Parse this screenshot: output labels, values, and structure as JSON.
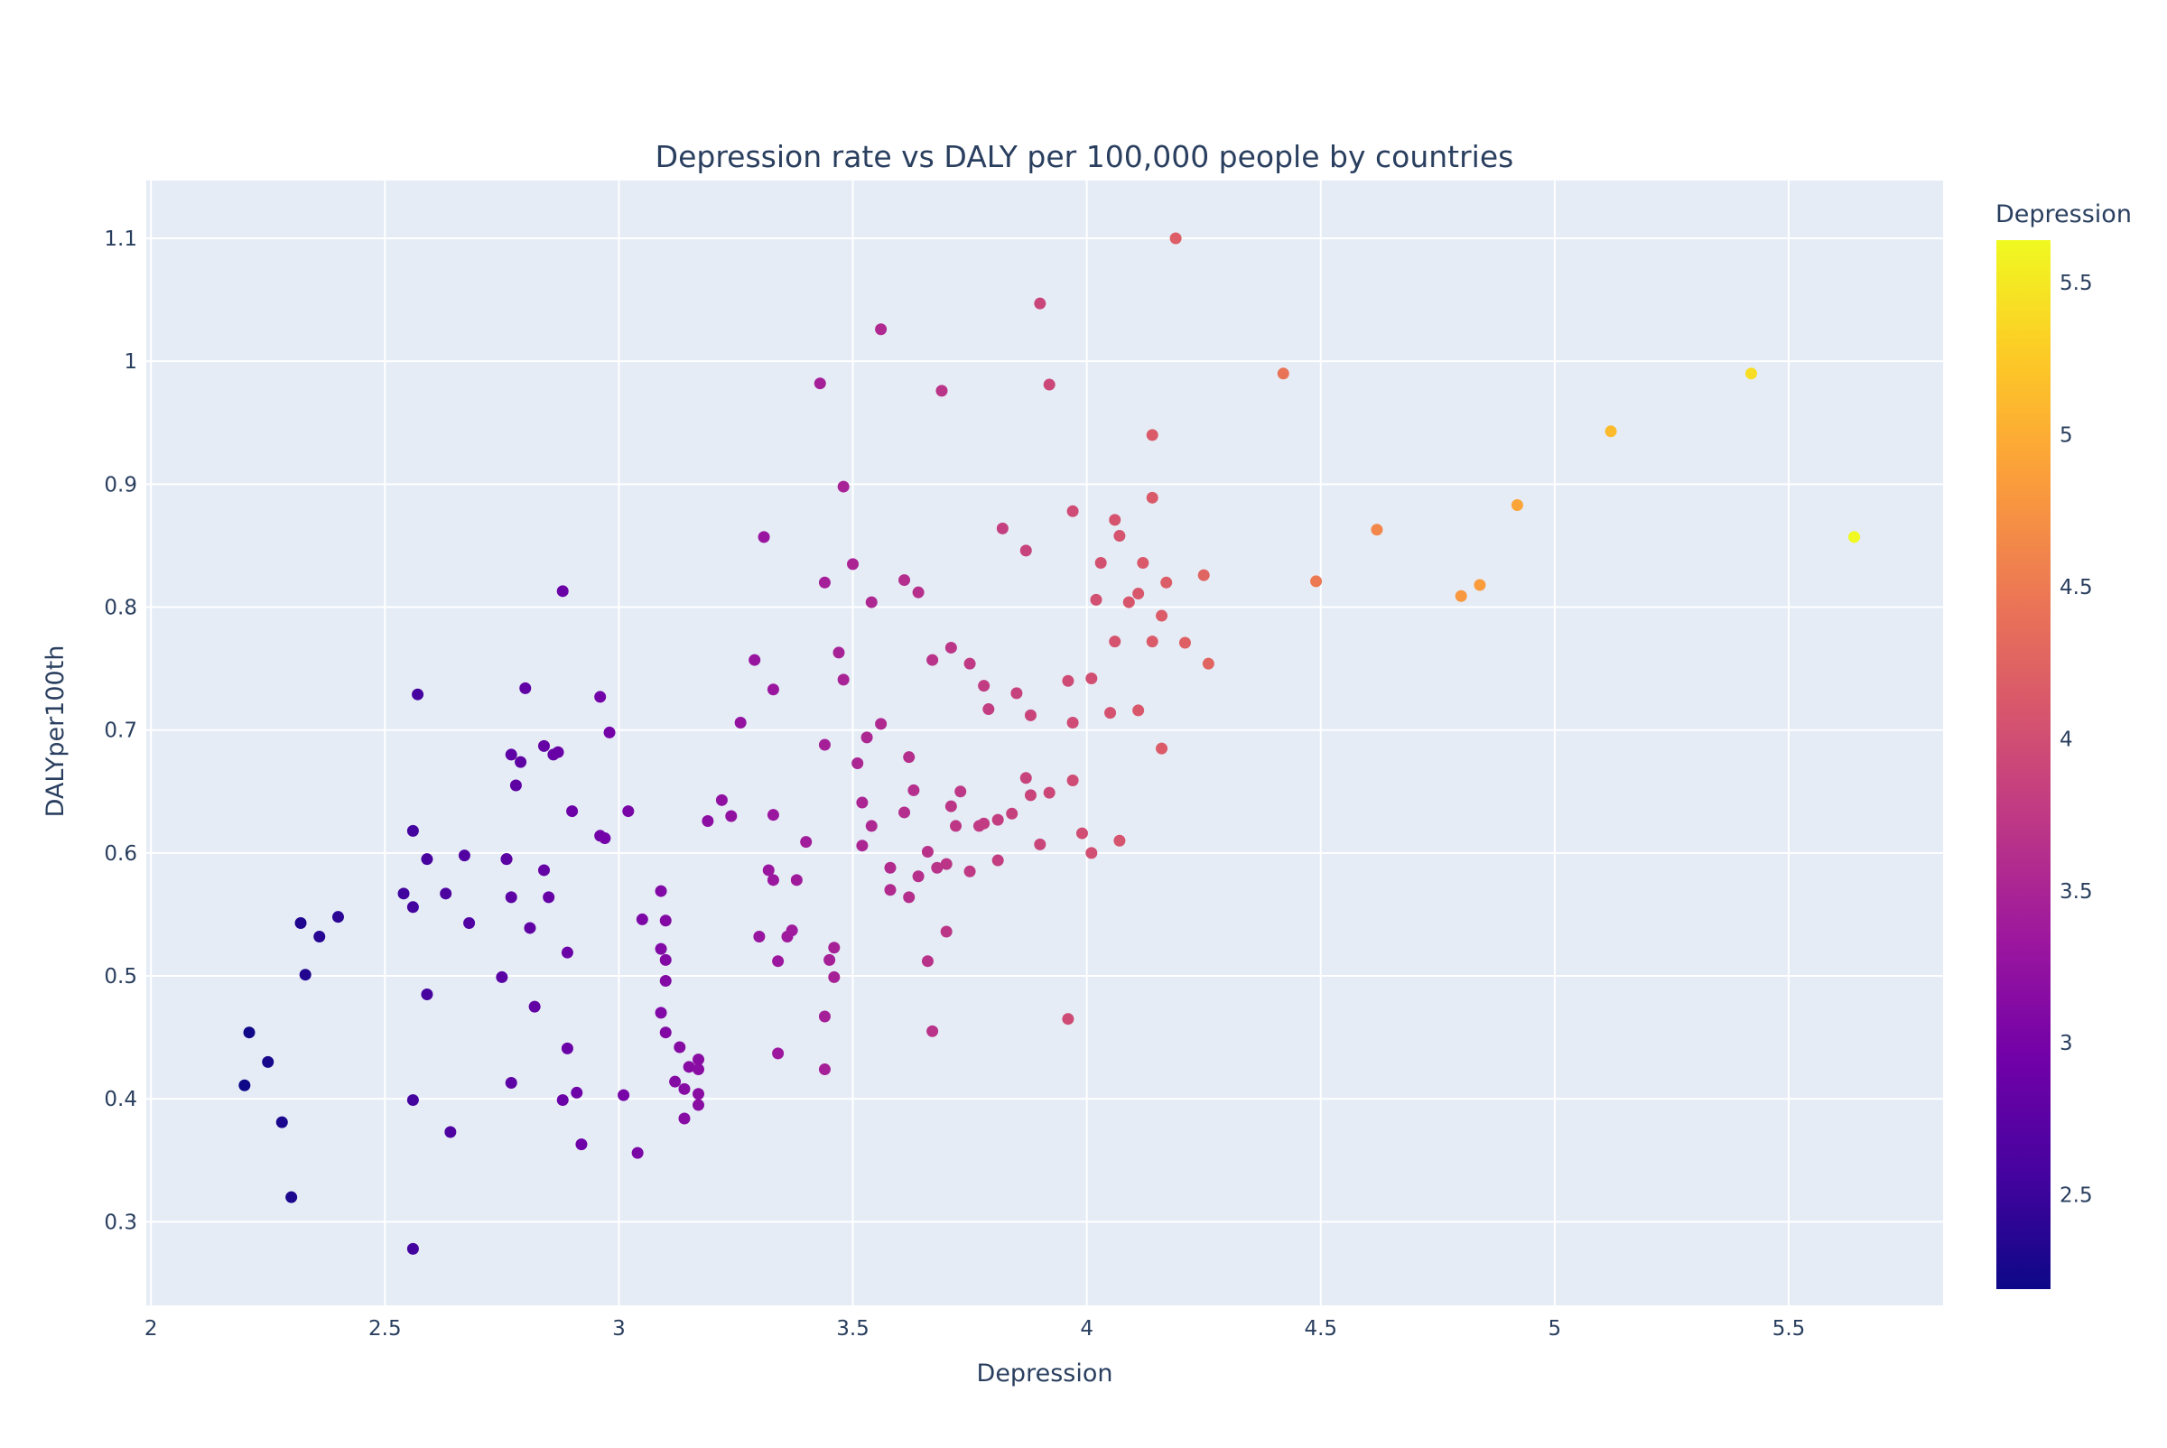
{
  "chart_data": {
    "type": "scatter",
    "title": "Depression rate vs DALY per 100,000 people by countries",
    "xlabel": "Depression",
    "ylabel": "DALYper100th",
    "xlim": [
      1.99,
      5.83
    ],
    "ylim": [
      0.232,
      1.147
    ],
    "xticks": [
      2,
      2.5,
      3,
      3.5,
      4,
      4.5,
      5,
      5.5
    ],
    "xtick_labels": [
      "2",
      "2.5",
      "3",
      "3.5",
      "4",
      "4.5",
      "5",
      "5.5"
    ],
    "yticks": [
      0.3,
      0.4,
      0.5,
      0.6,
      0.7,
      0.8,
      0.9,
      1,
      1.1
    ],
    "ytick_labels": [
      "0.3",
      "0.4",
      "0.5",
      "0.6",
      "0.7",
      "0.8",
      "0.9",
      "1",
      "1.1"
    ],
    "grid": true,
    "background": "#e5ecf6",
    "marker_color": "Depression (continuous colorscale)",
    "colorbar": {
      "title": "Depression",
      "range": [
        2.19,
        5.64
      ],
      "ticks": [
        2.5,
        3,
        3.5,
        4,
        4.5,
        5,
        5.5
      ],
      "tick_labels": [
        "2.5",
        "3",
        "3.5",
        "4",
        "4.5",
        "5",
        "5.5"
      ],
      "colorscale": [
        "#0d0887",
        "#46039f",
        "#7201a8",
        "#9c179e",
        "#bd3786",
        "#d8576b",
        "#ed7953",
        "#fb9f3a",
        "#fdca26",
        "#f0f921"
      ]
    },
    "x": [
      2.2,
      2.21,
      2.25,
      2.28,
      2.3,
      2.32,
      2.33,
      2.36,
      2.4,
      2.54,
      2.56,
      2.56,
      2.56,
      2.56,
      2.57,
      2.59,
      2.59,
      2.63,
      2.64,
      2.67,
      2.68,
      2.75,
      2.76,
      2.76,
      2.77,
      2.77,
      2.77,
      2.78,
      2.79,
      2.8,
      2.81,
      2.82,
      2.84,
      2.84,
      2.85,
      2.86,
      2.87,
      2.88,
      2.88,
      2.89,
      2.89,
      2.9,
      2.91,
      2.92,
      2.96,
      2.96,
      2.97,
      2.98,
      3.01,
      3.02,
      3.04,
      3.05,
      3.09,
      3.09,
      3.09,
      3.1,
      3.1,
      3.1,
      3.1,
      3.12,
      3.13,
      3.14,
      3.14,
      3.15,
      3.17,
      3.17,
      3.17,
      3.17,
      3.19,
      3.22,
      3.24,
      3.26,
      3.29,
      3.3,
      3.31,
      3.32,
      3.33,
      3.33,
      3.33,
      3.34,
      3.34,
      3.36,
      3.37,
      3.38,
      3.4,
      3.43,
      3.44,
      3.44,
      3.44,
      3.44,
      3.45,
      3.46,
      3.46,
      3.47,
      3.48,
      3.48,
      3.5,
      3.51,
      3.52,
      3.52,
      3.53,
      3.54,
      3.54,
      3.56,
      3.56,
      3.58,
      3.58,
      3.61,
      3.61,
      3.62,
      3.62,
      3.63,
      3.64,
      3.64,
      3.66,
      3.66,
      3.67,
      3.67,
      3.68,
      3.69,
      3.7,
      3.7,
      3.71,
      3.71,
      3.72,
      3.73,
      3.75,
      3.75,
      3.77,
      3.78,
      3.78,
      3.79,
      3.81,
      3.81,
      3.82,
      3.84,
      3.85,
      3.87,
      3.87,
      3.88,
      3.88,
      3.9,
      3.9,
      3.92,
      3.92,
      3.96,
      3.96,
      3.97,
      3.97,
      3.97,
      3.99,
      4.01,
      4.01,
      4.02,
      4.03,
      4.05,
      4.06,
      4.06,
      4.07,
      4.07,
      4.09,
      4.11,
      4.11,
      4.12,
      4.14,
      4.14,
      4.14,
      4.16,
      4.16,
      4.17,
      4.19,
      4.21,
      4.25,
      4.26,
      4.42,
      4.49,
      4.62,
      4.8,
      4.84,
      4.92,
      5.12,
      5.42,
      5.64
    ],
    "y": [
      0.411,
      0.454,
      0.43,
      0.381,
      0.32,
      0.543,
      0.501,
      0.532,
      0.548,
      0.567,
      0.618,
      0.556,
      0.399,
      0.278,
      0.729,
      0.595,
      0.485,
      0.567,
      0.373,
      0.598,
      0.543,
      0.499,
      0.595,
      0.595,
      0.68,
      0.413,
      0.564,
      0.655,
      0.674,
      0.734,
      0.539,
      0.475,
      0.687,
      0.586,
      0.564,
      0.68,
      0.682,
      0.813,
      0.399,
      0.519,
      0.441,
      0.634,
      0.405,
      0.363,
      0.614,
      0.727,
      0.612,
      0.698,
      0.403,
      0.634,
      0.356,
      0.546,
      0.569,
      0.522,
      0.47,
      0.513,
      0.545,
      0.454,
      0.496,
      0.414,
      0.442,
      0.384,
      0.408,
      0.426,
      0.432,
      0.424,
      0.404,
      0.395,
      0.626,
      0.643,
      0.63,
      0.706,
      0.757,
      0.532,
      0.857,
      0.586,
      0.578,
      0.631,
      0.733,
      0.512,
      0.437,
      0.532,
      0.537,
      0.578,
      0.609,
      0.982,
      0.82,
      0.688,
      0.467,
      0.424,
      0.513,
      0.523,
      0.499,
      0.763,
      0.741,
      0.898,
      0.835,
      0.673,
      0.606,
      0.641,
      0.694,
      0.622,
      0.804,
      1.026,
      0.705,
      0.57,
      0.588,
      0.633,
      0.822,
      0.678,
      0.564,
      0.651,
      0.581,
      0.812,
      0.512,
      0.601,
      0.757,
      0.455,
      0.588,
      0.976,
      0.591,
      0.536,
      0.638,
      0.767,
      0.622,
      0.65,
      0.754,
      0.585,
      0.622,
      0.736,
      0.624,
      0.717,
      0.594,
      0.627,
      0.864,
      0.632,
      0.73,
      0.846,
      0.661,
      0.712,
      0.647,
      1.047,
      0.607,
      0.649,
      0.981,
      0.465,
      0.74,
      0.706,
      0.878,
      0.659,
      0.616,
      0.6,
      0.742,
      0.806,
      0.836,
      0.714,
      0.871,
      0.772,
      0.61,
      0.858,
      0.804,
      0.716,
      0.811,
      0.836,
      0.772,
      0.94,
      0.889,
      0.685,
      0.793,
      0.82,
      1.1,
      0.771,
      0.826,
      0.754,
      0.99,
      0.821,
      0.863,
      0.809,
      0.818,
      0.883,
      0.943,
      0.99,
      0.857
    ]
  }
}
